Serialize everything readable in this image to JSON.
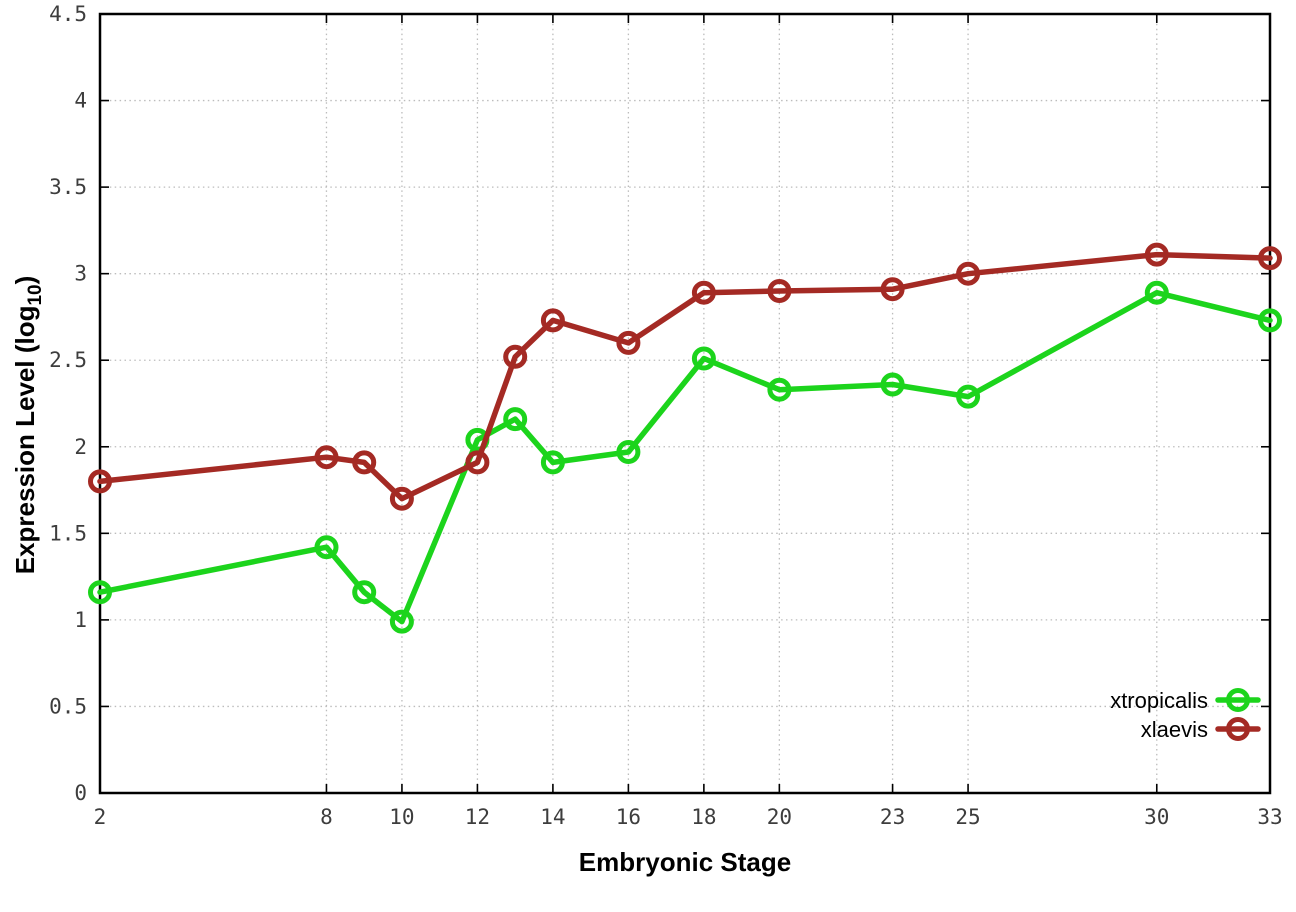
{
  "figure": {
    "background": "#ffffff",
    "border_color": "#000000",
    "grid_color": "#bcbcbc",
    "tick_color": "#000000",
    "tick_label_color": "#3d3d3d"
  },
  "chart_data": {
    "type": "line",
    "title": "",
    "xlabel": "Embryonic Stage",
    "ylabel": "Expression Level (log10)",
    "ylabel_parts": {
      "prefix": "Expression Level (log",
      "sub": "10",
      "suffix": ")"
    },
    "xlim": [
      2,
      33
    ],
    "ylim": [
      0,
      4.5
    ],
    "xticks": [
      2,
      8,
      10,
      12,
      14,
      16,
      18,
      20,
      23,
      25,
      30,
      33
    ],
    "yticks": [
      0,
      0.5,
      1,
      1.5,
      2,
      2.5,
      3,
      3.5,
      4,
      4.5
    ],
    "grid": true,
    "grid_style": "dotted",
    "marker": "open-circle",
    "legend_position": "bottom-right",
    "x": [
      2,
      8,
      9,
      10,
      12,
      13,
      14,
      16,
      18,
      20,
      23,
      25,
      30,
      33
    ],
    "series": [
      {
        "name": "xtropicalis",
        "color": "#1cd41c",
        "values": [
          1.16,
          1.42,
          1.16,
          0.99,
          2.04,
          2.16,
          1.91,
          1.97,
          2.51,
          2.33,
          2.36,
          2.29,
          2.89,
          2.73
        ]
      },
      {
        "name": "xlaevis",
        "color": "#a42a24",
        "values": [
          1.8,
          1.94,
          1.91,
          1.7,
          1.91,
          2.52,
          2.73,
          2.6,
          2.89,
          2.9,
          2.91,
          3.0,
          3.11,
          3.09
        ]
      }
    ]
  }
}
